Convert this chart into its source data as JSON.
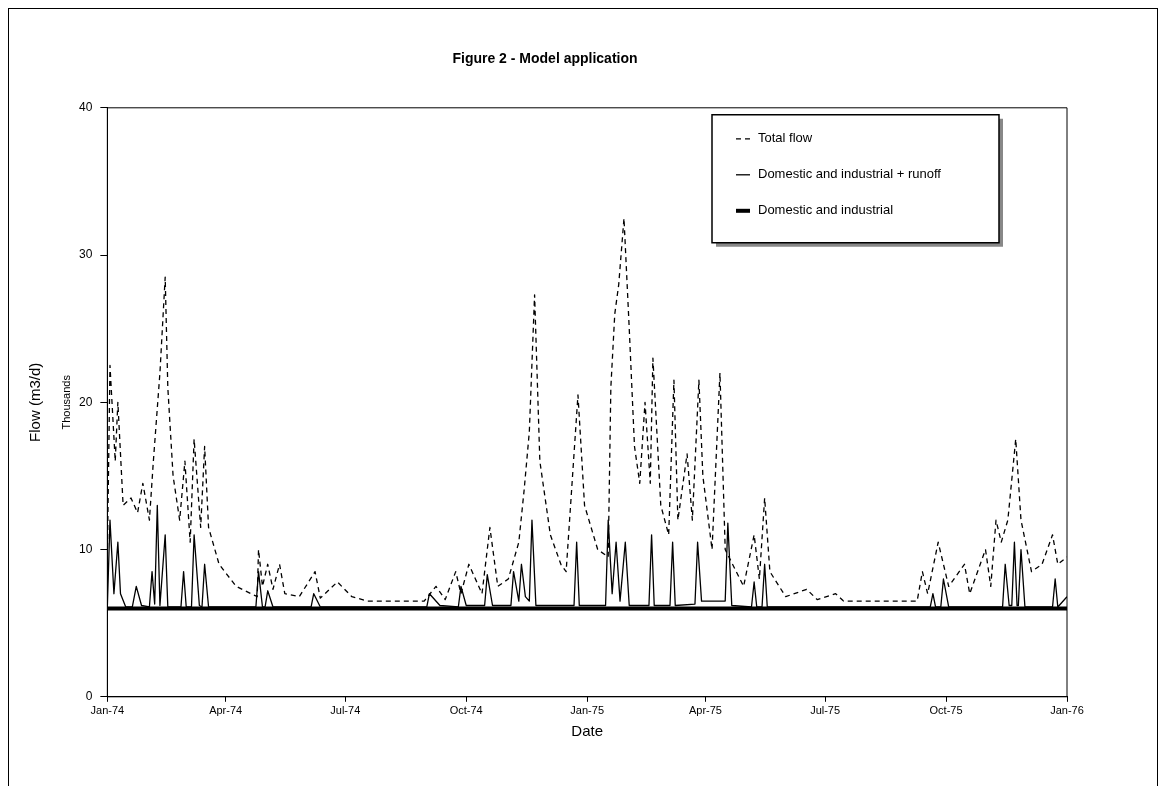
{
  "chart_data": {
    "type": "line",
    "title": "Figure 2 - Model application",
    "xlabel": "Date",
    "ylabel": "Flow (m3/d)",
    "annotations": [
      "Thousands"
    ],
    "xlim": [
      "1974-01-01",
      "1976-01-01"
    ],
    "xticks": [
      {
        "value": "1974-01-01",
        "label": "Jan-74"
      },
      {
        "value": "1974-04-01",
        "label": "Apr-74"
      },
      {
        "value": "1974-07-01",
        "label": "Jul-74"
      },
      {
        "value": "1974-10-01",
        "label": "Oct-74"
      },
      {
        "value": "1975-01-01",
        "label": "Jan-75"
      },
      {
        "value": "1975-04-01",
        "label": "Apr-75"
      },
      {
        "value": "1975-07-01",
        "label": "Jul-75"
      },
      {
        "value": "1975-10-01",
        "label": "Oct-75"
      },
      {
        "value": "1976-01-01",
        "label": "Jan-76"
      }
    ],
    "ylim": [
      0,
      40
    ],
    "yticks": [
      0,
      10,
      20,
      30,
      40
    ],
    "grid": false,
    "legend": "top right",
    "marker": "none",
    "series": [
      {
        "name": "Total flow",
        "color": "#000000",
        "line_style": "dashed",
        "x": [
          "1974-01-01",
          "1974-01-03",
          "1974-01-07",
          "1974-01-09",
          "1974-01-13",
          "1974-01-19",
          "1974-01-24",
          "1974-01-28",
          "1974-02-02",
          "1974-02-05",
          "1974-02-10",
          "1974-02-14",
          "1974-02-16",
          "1974-02-20",
          "1974-02-25",
          "1974-03-01",
          "1974-03-05",
          "1974-03-08",
          "1974-03-13",
          "1974-03-16",
          "1974-03-19",
          "1974-03-27",
          "1974-04-09",
          "1974-04-25",
          "1974-04-26",
          "1974-04-29",
          "1974-05-03",
          "1974-05-07",
          "1974-05-12",
          "1974-05-16",
          "1974-05-27",
          "1974-06-08",
          "1974-06-12",
          "1974-06-25",
          "1974-07-06",
          "1974-07-18",
          "1974-08-30",
          "1974-09-08",
          "1974-09-15",
          "1974-09-23",
          "1974-09-27",
          "1974-10-03",
          "1974-10-13",
          "1974-10-19",
          "1974-10-25",
          "1974-11-02",
          "1974-11-10",
          "1974-11-14",
          "1974-11-18",
          "1974-11-22",
          "1974-11-26",
          "1974-12-04",
          "1974-12-12",
          "1974-12-16",
          "1974-12-25",
          "1974-12-30",
          "1975-01-09",
          "1975-01-17",
          "1975-01-19",
          "1975-01-22",
          "1975-01-25",
          "1975-01-29",
          "1975-02-02",
          "1975-02-06",
          "1975-02-10",
          "1975-02-14",
          "1975-02-18",
          "1975-02-20",
          "1975-02-26",
          "1975-03-04",
          "1975-03-08",
          "1975-03-11",
          "1975-03-18",
          "1975-03-22",
          "1975-03-27",
          "1975-03-30",
          "1975-04-06",
          "1975-04-12",
          "1975-04-16",
          "1975-04-30",
          "1975-05-08",
          "1975-05-12",
          "1975-05-16",
          "1975-05-20",
          "1975-06-01",
          "1975-06-17",
          "1975-06-25",
          "1975-07-09",
          "1975-07-15",
          "1975-09-09",
          "1975-09-13",
          "1975-09-17",
          "1975-09-25",
          "1975-09-29",
          "1975-10-03",
          "1975-10-15",
          "1975-10-19",
          "1975-10-31",
          "1975-11-04",
          "1975-11-08",
          "1975-11-12",
          "1975-11-17",
          "1975-11-23",
          "1975-11-27",
          "1975-12-05",
          "1975-12-13",
          "1975-12-21",
          "1975-12-25",
          "1976-01-01"
        ],
        "values": [
          9.5,
          22.5,
          16,
          20,
          13,
          13.5,
          12.5,
          14.5,
          12,
          16,
          22,
          28.5,
          21,
          15,
          12,
          16,
          10.5,
          17.5,
          11.5,
          17,
          11.5,
          9,
          7.5,
          6.8,
          10,
          7.5,
          9,
          7.3,
          9,
          7,
          6.8,
          8.5,
          6.7,
          7.8,
          6.8,
          6.5,
          6.5,
          7.5,
          6.6,
          8.5,
          7,
          9,
          7,
          11.5,
          7.5,
          8,
          10.5,
          14,
          18,
          27.3,
          16,
          11,
          9,
          8.5,
          20.5,
          13,
          10,
          9.5,
          21,
          26,
          28,
          32.5,
          25,
          17,
          14.5,
          20,
          14.5,
          23,
          13,
          11,
          21.5,
          12,
          16.5,
          12,
          21.5,
          15,
          10,
          22,
          10,
          7.5,
          11,
          8,
          13.5,
          8.5,
          6.8,
          7.3,
          6.6,
          7,
          6.5,
          6.5,
          8.5,
          7,
          10.5,
          9,
          7.5,
          9,
          7,
          10,
          7.5,
          12,
          10.5,
          12,
          17.5,
          12,
          8.5,
          9,
          11,
          9,
          9.5
        ]
      },
      {
        "name": "Domestic and industrial + runoff",
        "color": "#000000",
        "line_style": "solid",
        "x": [
          "1974-01-01",
          "1974-01-03",
          "1974-01-06",
          "1974-01-09",
          "1974-01-11",
          "1974-01-15",
          "1974-01-20",
          "1974-01-23",
          "1974-01-27",
          "1974-02-02",
          "1974-02-04",
          "1974-02-06",
          "1974-02-08",
          "1974-02-10",
          "1974-02-14",
          "1974-02-16",
          "1974-02-26",
          "1974-02-28",
          "1974-03-02",
          "1974-03-06",
          "1974-03-08",
          "1974-03-12",
          "1974-03-14",
          "1974-03-16",
          "1974-03-19",
          "1974-04-24",
          "1974-04-26",
          "1974-04-29",
          "1974-05-01",
          "1974-05-03",
          "1974-05-07",
          "1974-06-05",
          "1974-06-07",
          "1974-06-12",
          "1974-09-01",
          "1974-09-03",
          "1974-09-11",
          "1974-09-25",
          "1974-09-27",
          "1974-10-01",
          "1974-10-15",
          "1974-10-17",
          "1974-10-21",
          "1974-11-04",
          "1974-11-06",
          "1974-11-10",
          "1974-11-12",
          "1974-11-15",
          "1974-11-18",
          "1974-11-20",
          "1974-11-23",
          "1974-12-22",
          "1974-12-24",
          "1974-12-26",
          "1975-01-15",
          "1975-01-17",
          "1975-01-20",
          "1975-01-23",
          "1975-01-26",
          "1975-01-30",
          "1975-02-02",
          "1975-02-17",
          "1975-02-19",
          "1975-02-21",
          "1975-03-05",
          "1975-03-07",
          "1975-03-09",
          "1975-03-24",
          "1975-03-26",
          "1975-03-29",
          "1975-04-16",
          "1975-04-18",
          "1975-04-21",
          "1975-05-06",
          "1975-05-08",
          "1975-05-10",
          "1975-05-14",
          "1975-05-16",
          "1975-05-18",
          "1975-09-19",
          "1975-09-21",
          "1975-09-23",
          "1975-09-27",
          "1975-09-29",
          "1975-10-03",
          "1975-11-13",
          "1975-11-15",
          "1975-11-18",
          "1975-11-20",
          "1975-11-22",
          "1975-11-24",
          "1975-11-25",
          "1975-11-27",
          "1975-11-30",
          "1975-12-21",
          "1975-12-23",
          "1975-12-25",
          "1976-01-01"
        ],
        "values": [
          6.1,
          12,
          7,
          10.5,
          7,
          6.1,
          6.1,
          7.5,
          6.2,
          6.1,
          8.5,
          6.3,
          13,
          6.2,
          11,
          6.1,
          6.1,
          8.5,
          6.1,
          6.1,
          11,
          6.2,
          6.1,
          9,
          6.1,
          6.1,
          8.5,
          6.1,
          6.1,
          7.2,
          6.1,
          6.1,
          7,
          6.1,
          6.1,
          7,
          6.2,
          6.1,
          7.5,
          6.2,
          6.2,
          8.3,
          6.2,
          6.2,
          8.5,
          6.5,
          9,
          6.8,
          6.5,
          12,
          6.2,
          6.2,
          10.5,
          6.2,
          6.2,
          12,
          7,
          10.5,
          6.5,
          10.5,
          6.2,
          6.2,
          11,
          6.2,
          6.2,
          10.5,
          6.2,
          6.3,
          10.5,
          6.5,
          6.5,
          11.8,
          6.2,
          6.1,
          7.8,
          6.1,
          6.1,
          9,
          6.1,
          6.1,
          7,
          6.1,
          6.1,
          8,
          6.1,
          6.1,
          9,
          6.2,
          6.2,
          10.5,
          6.2,
          6.2,
          10,
          6.1,
          6.1,
          8,
          6.1,
          6.8
        ]
      },
      {
        "name": "Domestic and industrial",
        "color": "#000000",
        "line_style": "solid",
        "x": [
          "1974-01-01",
          "1976-01-01"
        ],
        "values": [
          6,
          6
        ]
      }
    ]
  }
}
